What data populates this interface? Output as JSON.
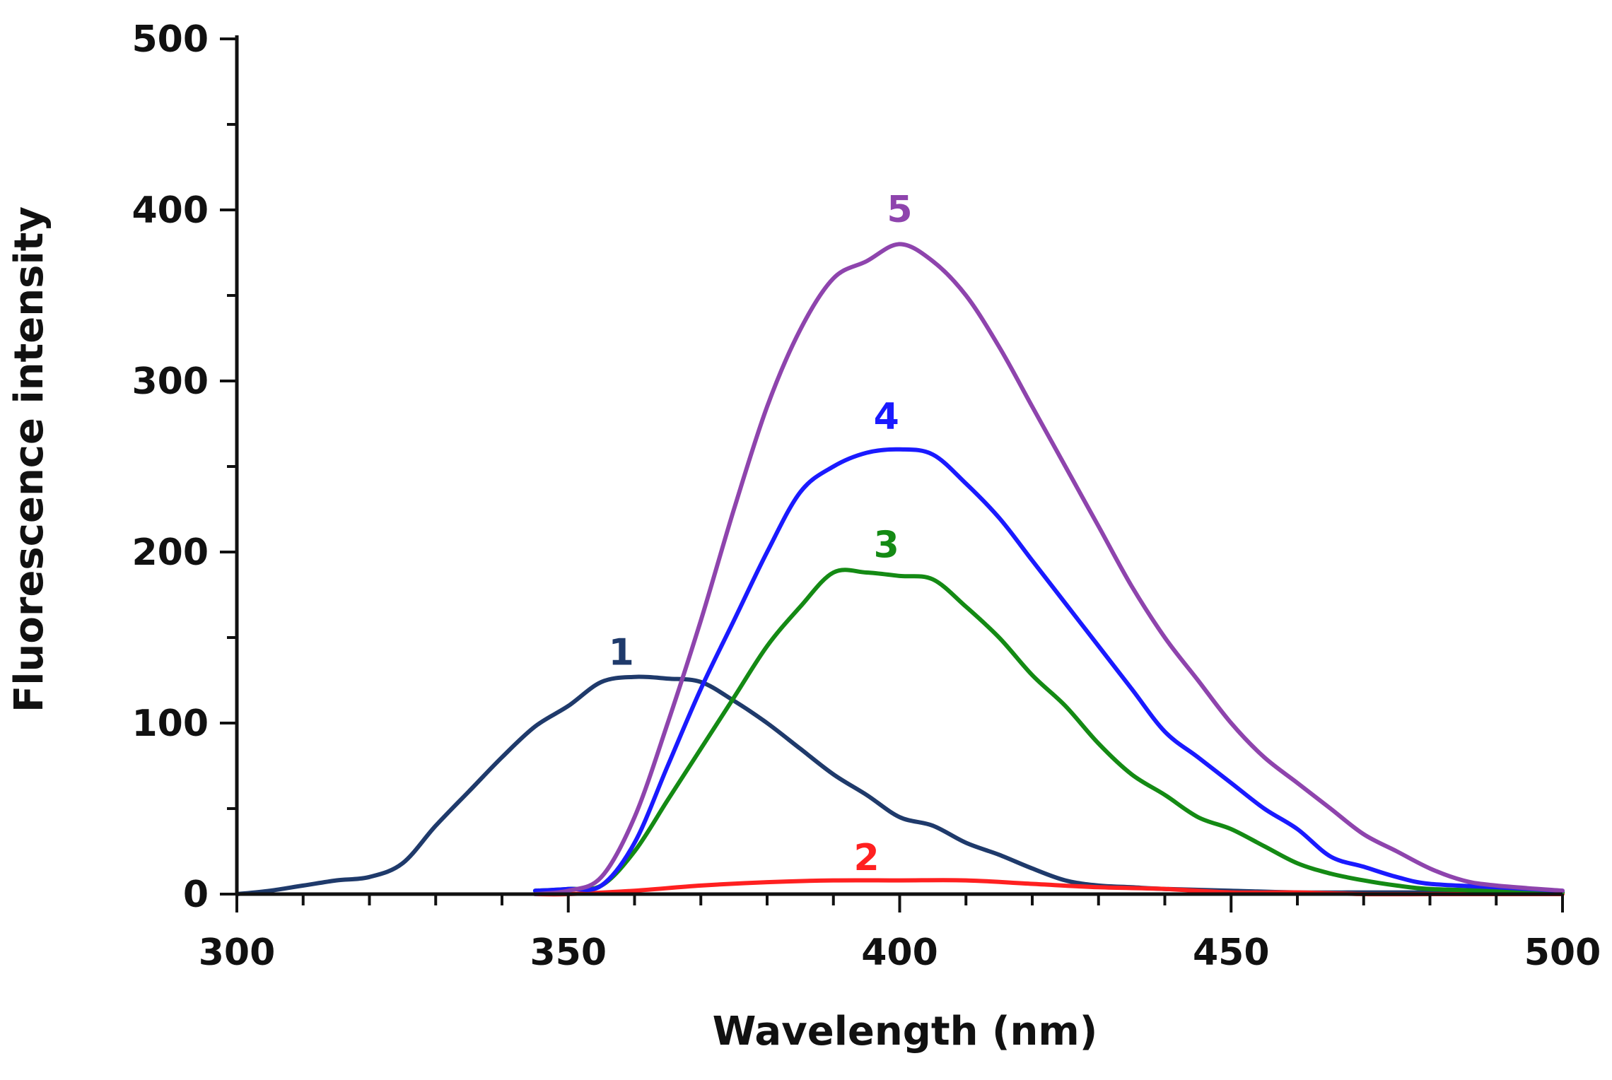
{
  "chart_data": {
    "type": "line",
    "title": "",
    "xlabel": "Wavelength (nm)",
    "ylabel": "Fluorescence intensity",
    "xlim": [
      300,
      500
    ],
    "ylim": [
      0,
      500
    ],
    "x_ticks": [
      300,
      350,
      400,
      450,
      500
    ],
    "y_ticks": [
      0,
      100,
      200,
      300,
      400,
      500
    ],
    "x_tick_labels": [
      "300",
      "350",
      "400",
      "450",
      "500"
    ],
    "y_tick_labels": [
      "0",
      "100",
      "200",
      "300",
      "400",
      "500"
    ],
    "grid": false,
    "legend": "none",
    "series": [
      {
        "label": "1",
        "color": "#1f3a6b",
        "x": [
          300,
          305,
          310,
          315,
          320,
          325,
          330,
          335,
          340,
          345,
          350,
          355,
          360,
          365,
          370,
          375,
          380,
          385,
          390,
          395,
          400,
          405,
          410,
          415,
          420,
          425,
          430,
          435,
          440,
          450,
          460,
          470,
          480,
          490,
          500
        ],
        "y": [
          0,
          2,
          5,
          8,
          10,
          18,
          40,
          60,
          80,
          98,
          110,
          124,
          127,
          126,
          124,
          113,
          100,
          85,
          70,
          58,
          45,
          40,
          30,
          23,
          15,
          8,
          5,
          4,
          3,
          2,
          1,
          1,
          1,
          1,
          1
        ]
      },
      {
        "label": "2",
        "color": "#ff2020",
        "x": [
          345,
          350,
          360,
          370,
          380,
          390,
          400,
          410,
          420,
          430,
          440,
          450,
          460,
          470,
          480,
          490,
          500
        ],
        "y": [
          0,
          0,
          2,
          5,
          7,
          8,
          8,
          8,
          6,
          4,
          3,
          1,
          1,
          0,
          0,
          0,
          0
        ]
      },
      {
        "label": "3",
        "color": "#148a14",
        "x": [
          345,
          350,
          355,
          360,
          365,
          370,
          375,
          380,
          385,
          390,
          395,
          400,
          405,
          410,
          415,
          420,
          425,
          430,
          435,
          440,
          445,
          450,
          455,
          460,
          465,
          470,
          475,
          480,
          490,
          500
        ],
        "y": [
          2,
          3,
          5,
          25,
          55,
          85,
          115,
          145,
          168,
          188,
          188,
          186,
          184,
          168,
          150,
          128,
          110,
          88,
          70,
          58,
          45,
          38,
          28,
          18,
          12,
          8,
          5,
          3,
          2,
          1
        ]
      },
      {
        "label": "4",
        "color": "#1a1aff",
        "x": [
          345,
          350,
          355,
          360,
          365,
          370,
          375,
          380,
          385,
          390,
          395,
          400,
          405,
          410,
          415,
          420,
          425,
          430,
          435,
          440,
          445,
          450,
          455,
          460,
          465,
          470,
          475,
          480,
          490,
          500
        ],
        "y": [
          2,
          3,
          5,
          30,
          75,
          120,
          160,
          200,
          235,
          250,
          258,
          260,
          257,
          240,
          220,
          195,
          170,
          145,
          120,
          95,
          80,
          65,
          50,
          38,
          22,
          16,
          10,
          6,
          4,
          2
        ]
      },
      {
        "label": "5",
        "color": "#8e44ad",
        "x": [
          345,
          350,
          355,
          360,
          365,
          370,
          375,
          380,
          385,
          390,
          395,
          400,
          405,
          410,
          415,
          420,
          425,
          430,
          435,
          440,
          445,
          450,
          455,
          460,
          465,
          470,
          475,
          480,
          485,
          490,
          500
        ],
        "y": [
          0,
          2,
          10,
          45,
          100,
          160,
          225,
          285,
          330,
          360,
          370,
          380,
          370,
          350,
          320,
          285,
          250,
          215,
          180,
          150,
          125,
          100,
          80,
          65,
          50,
          35,
          25,
          15,
          8,
          5,
          2
        ]
      }
    ]
  }
}
